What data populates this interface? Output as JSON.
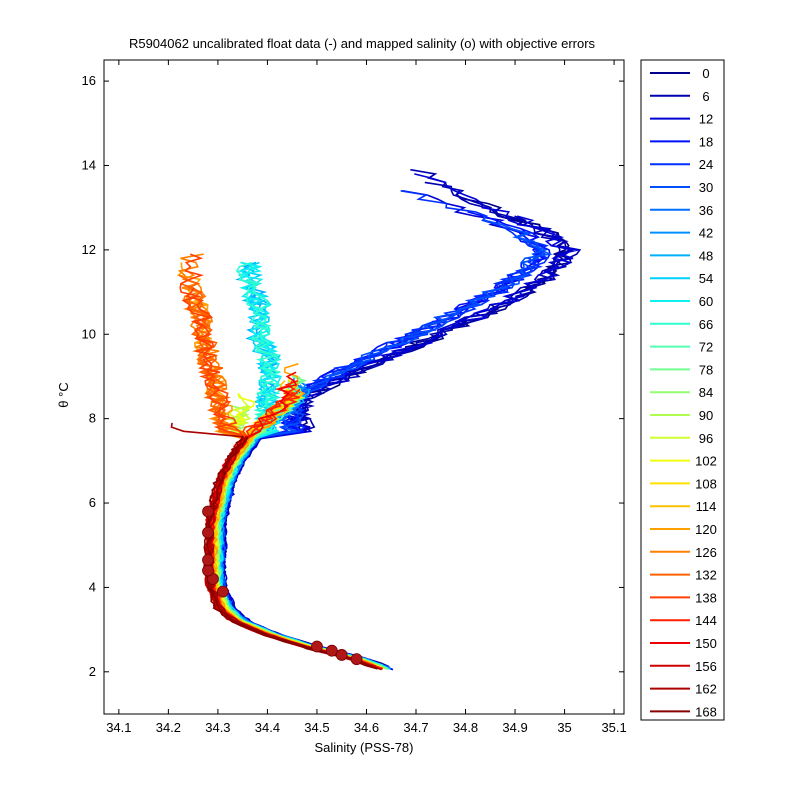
{
  "chart_data": {
    "type": "line",
    "title": "R5904062 uncalibrated float data (-) and mapped salinity (o) with objective errors",
    "xlabel": "Salinity (PSS-78)",
    "ylabel": "θ °C",
    "xlim": [
      34.07,
      35.12
    ],
    "ylim": [
      1.0,
      16.5
    ],
    "xticks": [
      "34.1",
      "34.2",
      "34.3",
      "34.4",
      "34.5",
      "34.6",
      "34.7",
      "34.8",
      "34.9",
      "35",
      "35.1"
    ],
    "xtick_values": [
      34.1,
      34.2,
      34.3,
      34.4,
      34.5,
      34.6,
      34.7,
      34.8,
      34.9,
      35.0,
      35.1
    ],
    "yticks": [
      "2",
      "4",
      "6",
      "8",
      "10",
      "12",
      "14",
      "16"
    ],
    "ytick_values": [
      2,
      4,
      6,
      8,
      10,
      12,
      14,
      16
    ],
    "grid": false,
    "legend_position": "right",
    "legend": [
      "0",
      "6",
      "12",
      "18",
      "24",
      "30",
      "36",
      "42",
      "48",
      "54",
      "60",
      "66",
      "72",
      "78",
      "84",
      "90",
      "96",
      "102",
      "108",
      "114",
      "120",
      "126",
      "132",
      "138",
      "144",
      "150",
      "156",
      "162",
      "168"
    ],
    "legend_colors": [
      "#00008f",
      "#0000b0",
      "#0000d5",
      "#0010ff",
      "#0030ff",
      "#0050ff",
      "#0070ff",
      "#0090ff",
      "#00b0ff",
      "#00d0ff",
      "#10f0f0",
      "#30ffd0",
      "#50ffb0",
      "#70ff90",
      "#90ff70",
      "#b0ff50",
      "#d0ff30",
      "#f0ff10",
      "#ffe000",
      "#ffc000",
      "#ffa000",
      "#ff8000",
      "#ff6000",
      "#ff4000",
      "#ff2000",
      "#ee0000",
      "#cc0000",
      "#aa0000",
      "#880000"
    ],
    "mean_profile": {
      "theta": [
        2.05,
        2.3,
        2.6,
        2.9,
        3.2,
        3.5,
        3.8,
        4.1,
        4.5,
        5.0,
        5.5,
        6.0,
        6.5,
        7.0,
        7.5,
        8.0,
        8.5
      ],
      "salinity": [
        34.66,
        34.6,
        34.5,
        34.42,
        34.36,
        34.33,
        34.32,
        34.31,
        34.31,
        34.31,
        34.31,
        34.32,
        34.33,
        34.35,
        34.38,
        34.42,
        34.47
      ]
    },
    "groups": [
      {
        "from": 0,
        "to": 12,
        "upper": {
          "theta": [
            8.5,
            9.0,
            9.5,
            10.0,
            10.5,
            11.0,
            11.5,
            12.0,
            12.5,
            13.0,
            13.5,
            14.0
          ],
          "salinity": [
            34.47,
            34.56,
            34.65,
            34.75,
            34.84,
            34.92,
            34.98,
            35.01,
            34.95,
            34.85,
            34.75,
            34.7
          ]
        }
      },
      {
        "from": 12,
        "to": 30,
        "upper": {
          "theta": [
            8.5,
            9.0,
            9.5,
            10.0,
            10.5,
            11.0,
            11.5,
            12.0,
            12.5,
            13.0,
            13.5
          ],
          "salinity": [
            34.45,
            34.53,
            34.61,
            34.7,
            34.78,
            34.86,
            34.92,
            34.96,
            34.9,
            34.78,
            34.65
          ]
        }
      },
      {
        "from": 48,
        "to": 66,
        "upper": {
          "theta": [
            8.5,
            9.0,
            9.5,
            10.0,
            10.5,
            11.0,
            11.5,
            12.0
          ],
          "salinity": [
            34.4,
            34.41,
            34.4,
            34.38,
            34.39,
            34.37,
            34.36,
            34.37
          ]
        }
      },
      {
        "from": 84,
        "to": 102,
        "upper": {
          "theta": [
            7.0,
            7.5,
            8.0,
            8.5,
            9.0
          ],
          "salinity": [
            34.3,
            34.32,
            34.34,
            34.36,
            34.38
          ]
        }
      },
      {
        "from": 120,
        "to": 138,
        "upper": {
          "theta": [
            7.5,
            8.0,
            8.5,
            9.0,
            9.5,
            10.0,
            10.5,
            11.0,
            11.5,
            12.0
          ],
          "salinity": [
            34.33,
            34.31,
            34.3,
            34.29,
            34.28,
            34.27,
            34.26,
            34.25,
            34.24,
            34.25
          ]
        }
      },
      {
        "from": 150,
        "to": 168,
        "upper": {
          "theta": [
            7.2,
            7.4,
            7.6,
            7.8,
            8.0
          ],
          "salinity": [
            34.31,
            34.28,
            34.25,
            34.22,
            34.2
          ]
        }
      }
    ],
    "mapped_points": {
      "theta": [
        2.3,
        2.4,
        2.5,
        2.6,
        3.9,
        4.2,
        4.4,
        4.65,
        5.3,
        5.8
      ],
      "salinity": [
        34.58,
        34.55,
        34.53,
        34.5,
        34.31,
        34.29,
        34.28,
        34.28,
        34.28,
        34.28
      ]
    }
  }
}
